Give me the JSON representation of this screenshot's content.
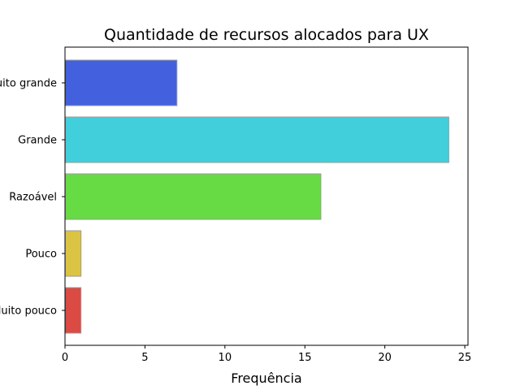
{
  "chart_data": {
    "type": "bar",
    "orientation": "horizontal",
    "title": "Quantidade de recursos alocados para UX",
    "xlabel": "Frequência",
    "ylabel": "",
    "categories": [
      "Muito grande",
      "Grande",
      "Razoável",
      "Pouco",
      "Muito pouco"
    ],
    "values": [
      7,
      24,
      16,
      1,
      1
    ],
    "colors": [
      "#4360de",
      "#41cfdb",
      "#66db43",
      "#dbc443",
      "#db4a43"
    ],
    "xlim": [
      0,
      25.2
    ],
    "xticks": [
      0,
      5,
      10,
      15,
      20,
      25
    ],
    "grid": false,
    "legend": "none"
  }
}
